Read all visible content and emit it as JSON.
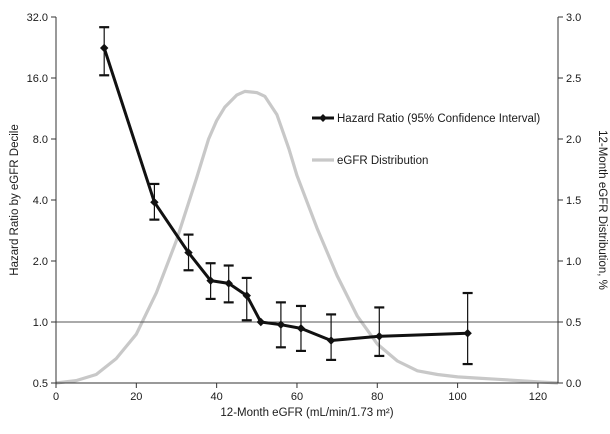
{
  "chart_data": {
    "type": "line",
    "title": "",
    "xlabel": "12-Month eGFR (mL/min/1.73 m²)",
    "ylabel": "Hazard Ratio by eGFR Decile",
    "y2label": "12-Month eGFR Distribution, %",
    "xlim": [
      0,
      125
    ],
    "x_ticks": [
      0,
      20,
      40,
      60,
      80,
      100,
      120
    ],
    "x_tick_labels": [
      "0",
      "20",
      "40",
      "60",
      "80",
      "100",
      "120"
    ],
    "ylim": [
      0.5,
      32
    ],
    "y_scale": "log2",
    "y_ticks": [
      0.5,
      1,
      2,
      4,
      8,
      16,
      32
    ],
    "y_tick_labels": [
      "0.5",
      "1.0",
      "2.0",
      "4.0",
      "8.0",
      "16.0",
      "32.0"
    ],
    "y2lim": [
      0,
      3
    ],
    "y2_ticks": [
      0,
      0.5,
      1,
      1.5,
      2,
      2.5,
      3
    ],
    "y2_tick_labels": [
      "0.0",
      "0.5",
      "1.0",
      "1.5",
      "2.0",
      "2.5",
      "3.0"
    ],
    "reference_line_y": 1.0,
    "grid": false,
    "legend_position": "top-right",
    "colors": {
      "hazard": "#111111",
      "distribution": "#c8c8c8",
      "axis": "#333333"
    },
    "series": [
      {
        "name": "Hazard Ratio (95% Confidence Interval)",
        "axis": "left",
        "marker": "diamond",
        "error_bars": true,
        "points": [
          {
            "x": 12,
            "y": 22.5,
            "lo": 16.5,
            "hi": 28.5
          },
          {
            "x": 24.5,
            "y": 3.9,
            "lo": 3.2,
            "hi": 4.8
          },
          {
            "x": 33,
            "y": 2.2,
            "lo": 1.8,
            "hi": 2.7
          },
          {
            "x": 38.5,
            "y": 1.6,
            "lo": 1.3,
            "hi": 1.95
          },
          {
            "x": 43,
            "y": 1.55,
            "lo": 1.25,
            "hi": 1.9
          },
          {
            "x": 47.5,
            "y": 1.35,
            "lo": 1.02,
            "hi": 1.65
          },
          {
            "x": 51,
            "y": 1.0,
            "lo": 1.0,
            "hi": 1.0
          },
          {
            "x": 56,
            "y": 0.97,
            "lo": 0.75,
            "hi": 1.25
          },
          {
            "x": 61,
            "y": 0.93,
            "lo": 0.72,
            "hi": 1.2
          },
          {
            "x": 68.5,
            "y": 0.81,
            "lo": 0.65,
            "hi": 1.09
          },
          {
            "x": 80.5,
            "y": 0.85,
            "lo": 0.68,
            "hi": 1.18
          },
          {
            "x": 102.5,
            "y": 0.88,
            "lo": 0.62,
            "hi": 1.39
          }
        ]
      },
      {
        "name": "eGFR Distribution",
        "axis": "right",
        "marker": "none",
        "x": [
          0,
          5,
          10,
          15,
          20,
          25,
          30,
          35,
          38,
          40,
          42,
          45,
          47,
          50,
          52,
          55,
          58,
          60,
          65,
          70,
          75,
          80,
          85,
          90,
          95,
          100,
          105,
          110,
          115,
          120,
          125
        ],
        "y": [
          0.0,
          0.02,
          0.07,
          0.2,
          0.4,
          0.74,
          1.17,
          1.68,
          2.0,
          2.15,
          2.26,
          2.36,
          2.39,
          2.38,
          2.35,
          2.2,
          1.92,
          1.7,
          1.27,
          0.88,
          0.55,
          0.32,
          0.18,
          0.1,
          0.07,
          0.05,
          0.04,
          0.03,
          0.02,
          0.01,
          0.0
        ]
      }
    ]
  }
}
